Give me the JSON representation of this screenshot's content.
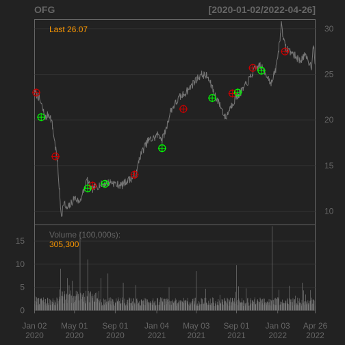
{
  "colors": {
    "background": "#222222",
    "panel_border": "#666666",
    "grid": "#333333",
    "text": "#666666",
    "price_line": "#777777",
    "volume_bar": "#777777",
    "last_label": "#FF9900",
    "buy_marker": "#00FF00",
    "sell_marker": "#CC0000"
  },
  "chart_data": [
    {
      "type": "line",
      "panel": "price",
      "title": "OFG",
      "subtitle": "[2020-01-02/2022-04-26]",
      "last_label": "Last 26.07",
      "x_range": [
        "2020-01-02",
        "2022-04-26"
      ],
      "ylim": [
        8.5,
        31
      ],
      "yticks": [
        "10",
        "15",
        "20",
        "25",
        "30"
      ],
      "xticks": [
        {
          "date": "2020-01-02",
          "month": "Jan 02",
          "year": "2020"
        },
        {
          "date": "2020-05-01",
          "month": "May 01",
          "year": "2020"
        },
        {
          "date": "2020-09-01",
          "month": "Sep 01",
          "year": "2020"
        },
        {
          "date": "2021-01-04",
          "month": "Jan 04",
          "year": "2021"
        },
        {
          "date": "2021-05-03",
          "month": "May 03",
          "year": "2021"
        },
        {
          "date": "2021-09-01",
          "month": "Sep 01",
          "year": "2021"
        },
        {
          "date": "2022-01-03",
          "month": "Jan 03",
          "year": "2022"
        },
        {
          "date": "2022-04-26",
          "month": "Apr 26",
          "year": "2022"
        }
      ],
      "grid": true,
      "price_series": [
        [
          "2020-01-02",
          23.0
        ],
        [
          "2020-01-15",
          22.5
        ],
        [
          "2020-01-28",
          21.0
        ],
        [
          "2020-02-05",
          20.2
        ],
        [
          "2020-02-15",
          20.8
        ],
        [
          "2020-02-24",
          19.5
        ],
        [
          "2020-03-05",
          17.0
        ],
        [
          "2020-03-12",
          15.0
        ],
        [
          "2020-03-18",
          11.5
        ],
        [
          "2020-03-23",
          9.5
        ],
        [
          "2020-03-30",
          11.0
        ],
        [
          "2020-04-08",
          10.2
        ],
        [
          "2020-04-20",
          10.8
        ],
        [
          "2020-05-01",
          11.5
        ],
        [
          "2020-05-15",
          11.0
        ],
        [
          "2020-06-01",
          12.5
        ],
        [
          "2020-06-08",
          13.5
        ],
        [
          "2020-06-20",
          12.3
        ],
        [
          "2020-07-01",
          12.6
        ],
        [
          "2020-07-15",
          12.9
        ],
        [
          "2020-08-01",
          13.0
        ],
        [
          "2020-08-20",
          13.2
        ],
        [
          "2020-09-01",
          13.0
        ],
        [
          "2020-09-20",
          12.8
        ],
        [
          "2020-10-05",
          13.3
        ],
        [
          "2020-10-20",
          13.6
        ],
        [
          "2020-11-05",
          14.2
        ],
        [
          "2020-11-12",
          15.8
        ],
        [
          "2020-11-25",
          16.8
        ],
        [
          "2020-12-10",
          17.8
        ],
        [
          "2020-12-28",
          18.0
        ],
        [
          "2021-01-10",
          18.5
        ],
        [
          "2021-01-20",
          17.8
        ],
        [
          "2021-02-01",
          19.0
        ],
        [
          "2021-02-15",
          21.0
        ],
        [
          "2021-03-01",
          21.8
        ],
        [
          "2021-03-15",
          22.5
        ],
        [
          "2021-04-01",
          23.0
        ],
        [
          "2021-04-20",
          23.8
        ],
        [
          "2021-05-05",
          24.5
        ],
        [
          "2021-05-20",
          25.0
        ],
        [
          "2021-06-05",
          24.8
        ],
        [
          "2021-06-20",
          23.5
        ],
        [
          "2021-07-01",
          22.5
        ],
        [
          "2021-07-15",
          21.5
        ],
        [
          "2021-07-30",
          20.2
        ],
        [
          "2021-08-15",
          21.5
        ],
        [
          "2021-09-01",
          22.5
        ],
        [
          "2021-09-20",
          23.3
        ],
        [
          "2021-10-10",
          24.5
        ],
        [
          "2021-10-25",
          25.5
        ],
        [
          "2021-11-10",
          26.0
        ],
        [
          "2021-11-30",
          25.0
        ],
        [
          "2021-12-15",
          24.0
        ],
        [
          "2021-12-28",
          25.5
        ],
        [
          "2022-01-05",
          27.5
        ],
        [
          "2022-01-10",
          29.0
        ],
        [
          "2022-01-14",
          30.5
        ],
        [
          "2022-01-25",
          28.0
        ],
        [
          "2022-02-10",
          27.5
        ],
        [
          "2022-02-25",
          27.0
        ],
        [
          "2022-03-10",
          26.5
        ],
        [
          "2022-03-25",
          27.0
        ],
        [
          "2022-04-05",
          26.5
        ],
        [
          "2022-04-15",
          25.8
        ],
        [
          "2022-04-20",
          28.5
        ],
        [
          "2022-04-26",
          26.07
        ]
      ],
      "buy_signals": [
        [
          "2020-01-22",
          20.3
        ],
        [
          "2020-06-10",
          12.5
        ],
        [
          "2020-08-01",
          13.0
        ],
        [
          "2021-01-20",
          16.9
        ],
        [
          "2021-06-20",
          22.4
        ],
        [
          "2021-09-05",
          23.0
        ],
        [
          "2021-11-15",
          25.4
        ]
      ],
      "sell_signals": [
        [
          "2020-01-07",
          23.0
        ],
        [
          "2020-03-05",
          16.0
        ],
        [
          "2020-06-25",
          12.8
        ],
        [
          "2020-10-29",
          14.0
        ],
        [
          "2021-03-25",
          21.2
        ],
        [
          "2021-08-20",
          22.9
        ],
        [
          "2021-10-20",
          25.7
        ],
        [
          "2022-01-25",
          27.5
        ]
      ]
    },
    {
      "type": "bar",
      "panel": "volume",
      "title": "Volume (100,000s):",
      "last_value": "305,300",
      "ylim": [
        0,
        18.5
      ],
      "yticks": [
        "0",
        "5",
        "10",
        "15"
      ],
      "volume_spikes": [
        [
          "2020-03-20",
          9.0
        ],
        [
          "2020-04-10",
          7.0
        ],
        [
          "2020-05-18",
          17.0
        ],
        [
          "2020-06-10",
          11.0
        ],
        [
          "2020-06-20",
          15.0
        ],
        [
          "2020-07-20",
          7.0
        ],
        [
          "2020-08-10",
          8.0
        ],
        [
          "2020-09-25",
          6.0
        ],
        [
          "2020-11-02",
          5.5
        ],
        [
          "2021-02-10",
          5.0
        ],
        [
          "2021-05-03",
          8.5
        ],
        [
          "2021-09-01",
          9.8
        ],
        [
          "2021-12-17",
          18.2
        ],
        [
          "2022-03-18",
          6.0
        ]
      ]
    }
  ]
}
